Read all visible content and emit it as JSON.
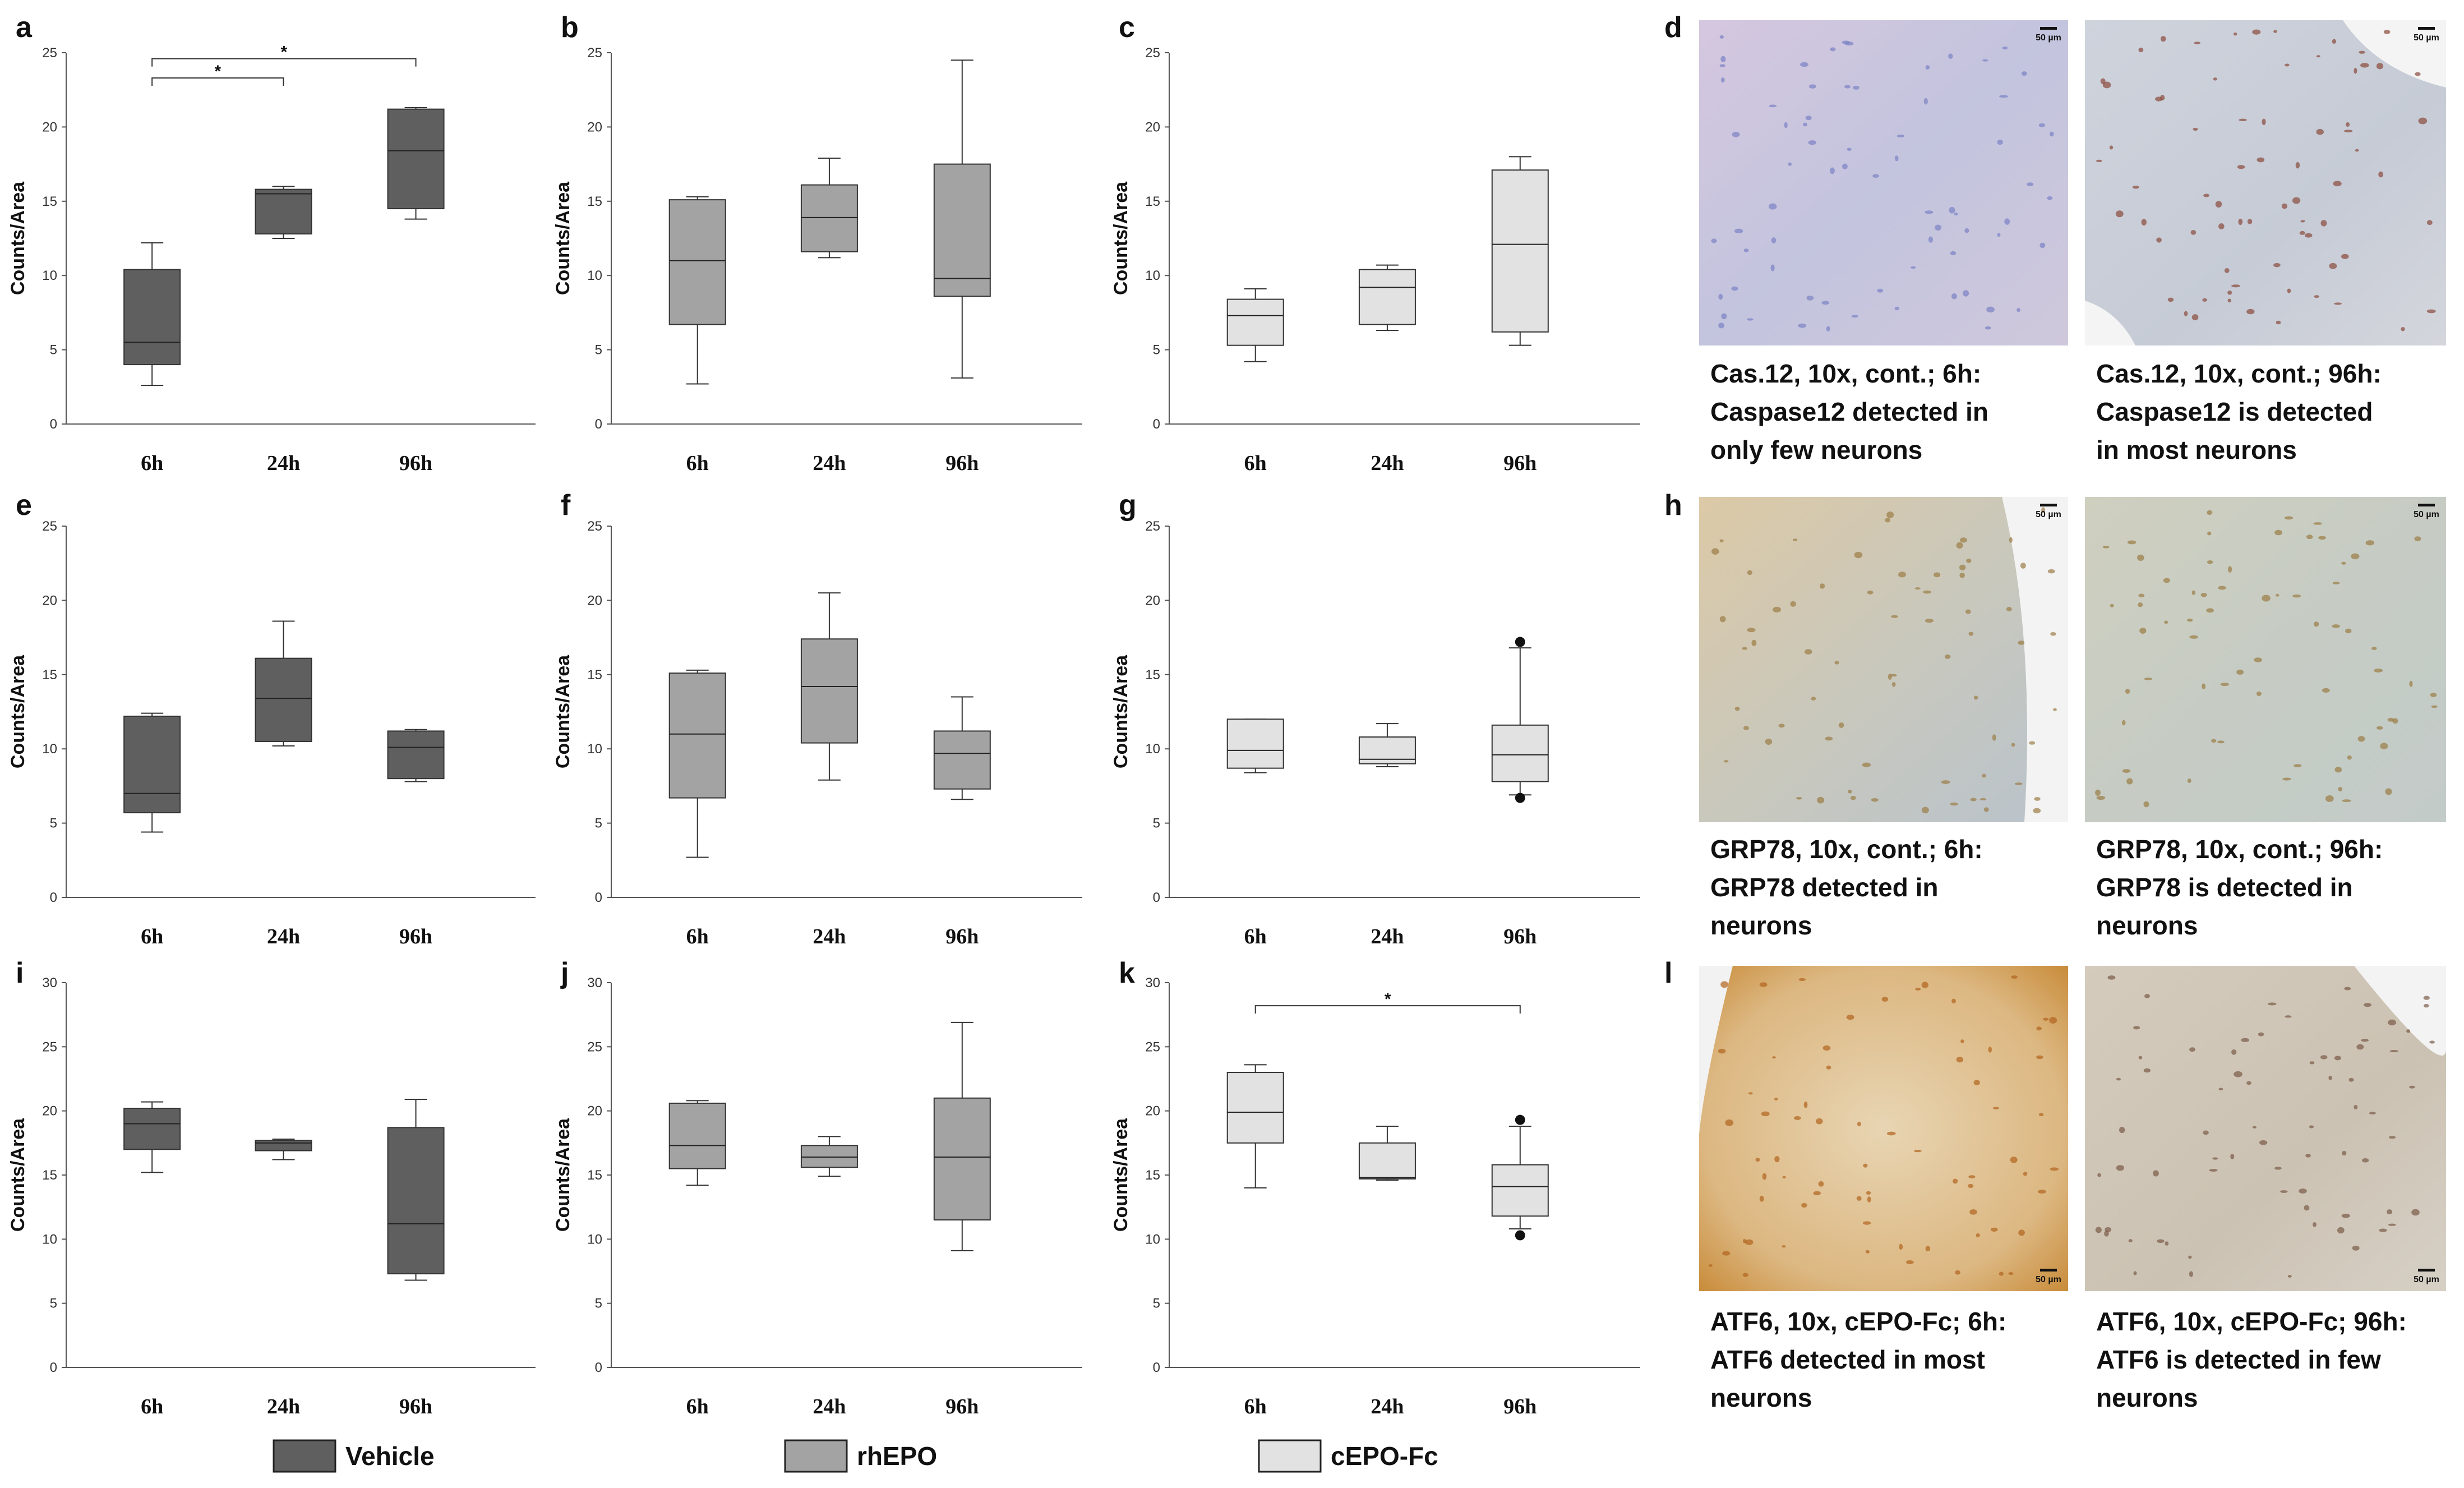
{
  "colors": {
    "Vehicle": "#5f5f5f",
    "rhEPO": "#a3a3a3",
    "cEPO-Fc": "#e2e2e2",
    "axis": "#555555"
  },
  "chart_data": [
    {
      "panel": "a",
      "type": "box",
      "ylabel": "Counts/Area",
      "ylim": [
        0,
        25
      ],
      "yticks": [
        0,
        5,
        10,
        15,
        20,
        25
      ],
      "categories": [
        "6h",
        "24h",
        "96h"
      ],
      "series_name": "Vehicle",
      "boxes": [
        {
          "whisker_low": 2.6,
          "q1": 4.0,
          "median": 5.5,
          "q3": 10.4,
          "whisker_high": 12.2,
          "outliers": []
        },
        {
          "whisker_low": 12.5,
          "q1": 12.8,
          "median": 15.5,
          "q3": 15.8,
          "whisker_high": 16.0,
          "outliers": []
        },
        {
          "whisker_low": 13.8,
          "q1": 14.5,
          "median": 18.4,
          "q3": 21.2,
          "whisker_high": 21.3,
          "outliers": []
        }
      ],
      "significance": [
        {
          "from": 0,
          "to": 1,
          "y": 23.3,
          "label": "*"
        },
        {
          "from": 0,
          "to": 2,
          "y": 24.6,
          "label": "*"
        }
      ]
    },
    {
      "panel": "b",
      "type": "box",
      "ylabel": "Counts/Area",
      "ylim": [
        0,
        25
      ],
      "yticks": [
        0,
        5,
        10,
        15,
        20,
        25
      ],
      "categories": [
        "6h",
        "24h",
        "96h"
      ],
      "series_name": "rhEPO",
      "boxes": [
        {
          "whisker_low": 2.7,
          "q1": 6.7,
          "median": 11.0,
          "q3": 15.1,
          "whisker_high": 15.3,
          "outliers": []
        },
        {
          "whisker_low": 11.2,
          "q1": 11.6,
          "median": 13.9,
          "q3": 16.1,
          "whisker_high": 17.9,
          "outliers": []
        },
        {
          "whisker_low": 3.1,
          "q1": 8.6,
          "median": 9.8,
          "q3": 17.5,
          "whisker_high": 24.5,
          "outliers": []
        }
      ],
      "significance": []
    },
    {
      "panel": "c",
      "type": "box",
      "ylabel": "Counts/Area",
      "ylim": [
        0,
        25
      ],
      "yticks": [
        0,
        5,
        10,
        15,
        20,
        25
      ],
      "categories": [
        "6h",
        "24h",
        "96h"
      ],
      "series_name": "cEPO-Fc",
      "boxes": [
        {
          "whisker_low": 4.2,
          "q1": 5.3,
          "median": 7.3,
          "q3": 8.4,
          "whisker_high": 9.1,
          "outliers": []
        },
        {
          "whisker_low": 6.3,
          "q1": 6.7,
          "median": 9.2,
          "q3": 10.4,
          "whisker_high": 10.7,
          "outliers": []
        },
        {
          "whisker_low": 5.3,
          "q1": 6.2,
          "median": 12.1,
          "q3": 17.1,
          "whisker_high": 18.0,
          "outliers": []
        }
      ],
      "significance": []
    },
    {
      "panel": "e",
      "type": "box",
      "ylabel": "Counts/Area",
      "ylim": [
        0,
        25
      ],
      "yticks": [
        0,
        5,
        10,
        15,
        20,
        25
      ],
      "categories": [
        "6h",
        "24h",
        "96h"
      ],
      "series_name": "Vehicle",
      "boxes": [
        {
          "whisker_low": 4.4,
          "q1": 5.7,
          "median": 7.0,
          "q3": 12.2,
          "whisker_high": 12.4,
          "outliers": []
        },
        {
          "whisker_low": 10.2,
          "q1": 10.5,
          "median": 13.4,
          "q3": 16.1,
          "whisker_high": 18.6,
          "outliers": []
        },
        {
          "whisker_low": 7.8,
          "q1": 8.0,
          "median": 10.1,
          "q3": 11.2,
          "whisker_high": 11.3,
          "outliers": []
        }
      ],
      "significance": []
    },
    {
      "panel": "f",
      "type": "box",
      "ylabel": "Counts/Area",
      "ylim": [
        0,
        25
      ],
      "yticks": [
        0,
        5,
        10,
        15,
        20,
        25
      ],
      "categories": [
        "6h",
        "24h",
        "96h"
      ],
      "series_name": "rhEPO",
      "boxes": [
        {
          "whisker_low": 2.7,
          "q1": 6.7,
          "median": 11.0,
          "q3": 15.1,
          "whisker_high": 15.3,
          "outliers": []
        },
        {
          "whisker_low": 7.9,
          "q1": 10.4,
          "median": 14.2,
          "q3": 17.4,
          "whisker_high": 20.5,
          "outliers": []
        },
        {
          "whisker_low": 6.6,
          "q1": 7.3,
          "median": 9.7,
          "q3": 11.2,
          "whisker_high": 13.5,
          "outliers": []
        }
      ],
      "significance": []
    },
    {
      "panel": "g",
      "type": "box",
      "ylabel": "Counts/Area",
      "ylim": [
        0,
        25
      ],
      "yticks": [
        0,
        5,
        10,
        15,
        20,
        25
      ],
      "categories": [
        "6h",
        "24h",
        "96h"
      ],
      "series_name": "cEPO-Fc",
      "boxes": [
        {
          "whisker_low": 8.4,
          "q1": 8.7,
          "median": 9.9,
          "q3": 12.0,
          "whisker_high": 12.0,
          "outliers": []
        },
        {
          "whisker_low": 8.8,
          "q1": 9.0,
          "median": 9.3,
          "q3": 10.8,
          "whisker_high": 11.7,
          "outliers": []
        },
        {
          "whisker_low": 6.9,
          "q1": 7.8,
          "median": 9.6,
          "q3": 11.6,
          "whisker_high": 16.8,
          "outliers": [
            17.2,
            6.7
          ]
        }
      ],
      "significance": []
    },
    {
      "panel": "i",
      "type": "box",
      "ylabel": "Counts/Area",
      "ylim": [
        0,
        30
      ],
      "yticks": [
        0,
        5,
        10,
        15,
        20,
        25,
        30
      ],
      "categories": [
        "6h",
        "24h",
        "96h"
      ],
      "series_name": "Vehicle",
      "boxes": [
        {
          "whisker_low": 15.2,
          "q1": 17.0,
          "median": 19.0,
          "q3": 20.2,
          "whisker_high": 20.7,
          "outliers": []
        },
        {
          "whisker_low": 16.2,
          "q1": 16.9,
          "median": 17.5,
          "q3": 17.7,
          "whisker_high": 17.8,
          "outliers": []
        },
        {
          "whisker_low": 6.8,
          "q1": 7.3,
          "median": 11.2,
          "q3": 18.7,
          "whisker_high": 20.9,
          "outliers": []
        }
      ],
      "significance": []
    },
    {
      "panel": "j",
      "type": "box",
      "ylabel": "Counts/Area",
      "ylim": [
        0,
        30
      ],
      "yticks": [
        0,
        5,
        10,
        15,
        20,
        25,
        30
      ],
      "categories": [
        "6h",
        "24h",
        "96h"
      ],
      "series_name": "rhEPO",
      "boxes": [
        {
          "whisker_low": 14.2,
          "q1": 15.5,
          "median": 17.3,
          "q3": 20.6,
          "whisker_high": 20.8,
          "outliers": []
        },
        {
          "whisker_low": 14.9,
          "q1": 15.6,
          "median": 16.4,
          "q3": 17.3,
          "whisker_high": 18.0,
          "outliers": []
        },
        {
          "whisker_low": 9.1,
          "q1": 11.5,
          "median": 16.4,
          "q3": 21.0,
          "whisker_high": 26.9,
          "outliers": []
        }
      ],
      "significance": []
    },
    {
      "panel": "k",
      "type": "box",
      "ylabel": "Counts/Area",
      "ylim": [
        0,
        30
      ],
      "yticks": [
        0,
        5,
        10,
        15,
        20,
        25,
        30
      ],
      "categories": [
        "6h",
        "24h",
        "96h"
      ],
      "series_name": "cEPO-Fc",
      "boxes": [
        {
          "whisker_low": 14.0,
          "q1": 17.5,
          "median": 19.9,
          "q3": 23.0,
          "whisker_high": 23.6,
          "outliers": []
        },
        {
          "whisker_low": 14.6,
          "q1": 14.7,
          "median": 14.8,
          "q3": 17.5,
          "whisker_high": 18.8,
          "outliers": []
        },
        {
          "whisker_low": 10.8,
          "q1": 11.8,
          "median": 14.1,
          "q3": 15.8,
          "whisker_high": 18.8,
          "outliers": [
            19.3,
            10.3
          ]
        }
      ],
      "significance": [
        {
          "from": 0,
          "to": 2,
          "y": 28.2,
          "label": "*"
        }
      ]
    }
  ],
  "photo_panels": {
    "d": {
      "letter": "d",
      "left": {
        "caption": [
          "Cas.12, 10x, cont.; 6h:",
          "Caspase12 detected in",
          "only few neurons"
        ],
        "scale": "50 µm"
      },
      "right": {
        "caption": [
          "Cas.12, 10x, cont.; 96h:",
          "Caspase12 is detected",
          "in most neurons"
        ],
        "scale": "50 µm"
      }
    },
    "h": {
      "letter": "h",
      "left": {
        "caption": [
          "GRP78, 10x, cont.; 6h:",
          "GRP78 detected in",
          "neurons"
        ],
        "scale": "50 µm"
      },
      "right": {
        "caption": [
          "GRP78, 10x, cont.; 96h:",
          "GRP78 is detected in",
          "neurons"
        ],
        "scale": "50 µm"
      }
    },
    "l": {
      "letter": "l",
      "left": {
        "caption": [
          "ATF6, 10x, cEPO-Fc; 6h:",
          "ATF6 detected in most",
          "neurons"
        ],
        "scale": "50 µm"
      },
      "right": {
        "caption": [
          "ATF6, 10x, cEPO-Fc; 96h:",
          "ATF6 is detected in few",
          "neurons"
        ],
        "scale": "50 µm"
      }
    }
  },
  "legend": [
    {
      "label": "Vehicle",
      "color": "#5f5f5f"
    },
    {
      "label": "rhEPO",
      "color": "#a3a3a3"
    },
    {
      "label": "cEPO-Fc",
      "color": "#e2e2e2"
    }
  ]
}
